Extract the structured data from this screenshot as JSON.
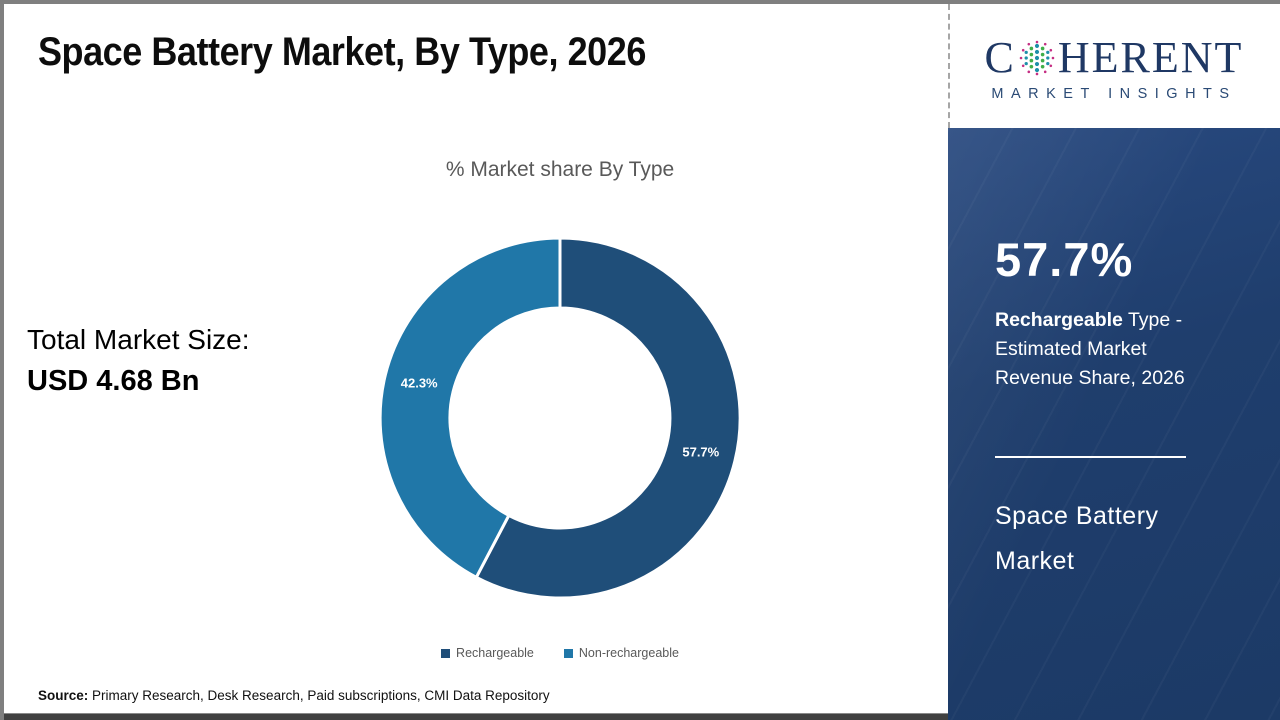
{
  "slide": {
    "title": "Space Battery Market, By Type, 2026"
  },
  "logo": {
    "line1_pre": "C",
    "line1_post": "HERENT",
    "line2": "MARKET INSIGHTS",
    "brand_navy": "#1f3864",
    "globe_teal": "#1d8fa8",
    "globe_green": "#3fae49",
    "globe_magenta": "#c52e83"
  },
  "left_stats": {
    "label": "Total Market Size:",
    "value": "USD 4.68 Bn"
  },
  "chart_data": {
    "type": "pie",
    "donut": true,
    "title": "% Market share By Type",
    "categories": [
      "Rechargeable",
      "Non-rechargeable"
    ],
    "values": [
      57.7,
      42.3
    ],
    "labels": [
      "57.7%",
      "42.3%"
    ],
    "colors": [
      "#1F4E79",
      "#2077A8"
    ],
    "start_angle_deg": -90,
    "direction": "clockwise",
    "legend_position": "bottom"
  },
  "sidebar": {
    "stat_value": "57.7%",
    "stat_label_bold": "Rechargeable",
    "stat_label_rest": " Type - Estimated Market Revenue Share, 2026",
    "panel_title": "Space Battery Market",
    "bg_color": "#1d3b67"
  },
  "source": {
    "label": "Source:",
    "text": " Primary Research, Desk Research, Paid subscriptions, CMI Data Repository"
  }
}
